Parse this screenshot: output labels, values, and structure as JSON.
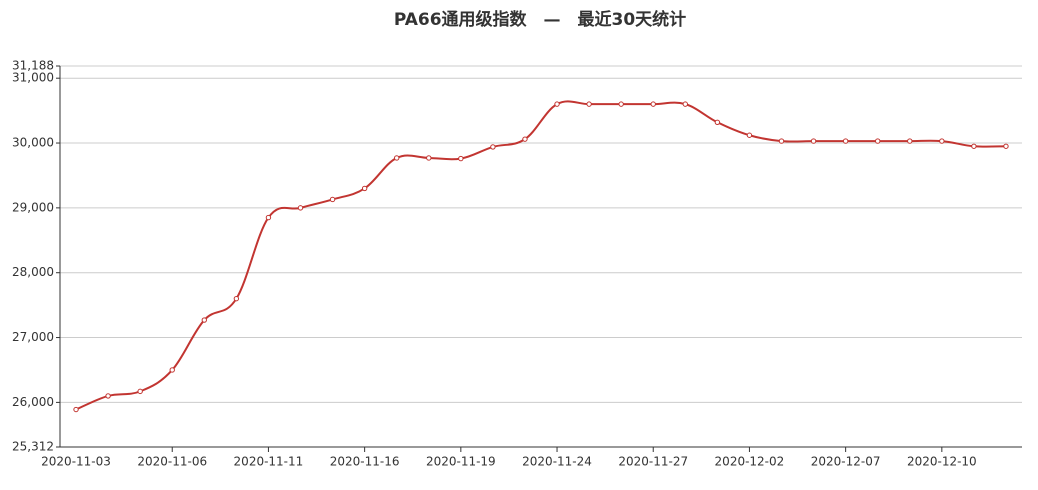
{
  "chart_data": {
    "type": "line",
    "title": "PA66通用级指数　—　最近30天统计",
    "categories": [
      "2020-11-03",
      null,
      null,
      "2020-11-06",
      null,
      null,
      "2020-11-11",
      null,
      null,
      "2020-11-16",
      null,
      null,
      "2020-11-19",
      null,
      null,
      "2020-11-24",
      null,
      null,
      "2020-11-27",
      null,
      null,
      "2020-12-02",
      null,
      null,
      "2020-12-07",
      null,
      null,
      "2020-12-10",
      null,
      null
    ],
    "series": [
      {
        "color": "#c23531",
        "values": [
          25890,
          26100,
          26170,
          26500,
          27270,
          27600,
          28850,
          29000,
          29130,
          29300,
          29770,
          29770,
          29760,
          29940,
          30060,
          30600,
          30600,
          30600,
          30600,
          30600,
          30320,
          30120,
          30030,
          30030,
          30030,
          30030,
          30030,
          30030,
          29950,
          29950
        ]
      }
    ],
    "ylim": [
      25312,
      31188
    ],
    "yticks": [
      {
        "value": 25312,
        "label": "25,312"
      },
      {
        "value": 26000,
        "label": "26,000"
      },
      {
        "value": 27000,
        "label": "27,000"
      },
      {
        "value": 28000,
        "label": "28,000"
      },
      {
        "value": 29000,
        "label": "29,000"
      },
      {
        "value": 30000,
        "label": "30,000"
      },
      {
        "value": 31000,
        "label": "31,000"
      },
      {
        "value": 31188,
        "label": "31,188"
      }
    ],
    "grid": true
  }
}
